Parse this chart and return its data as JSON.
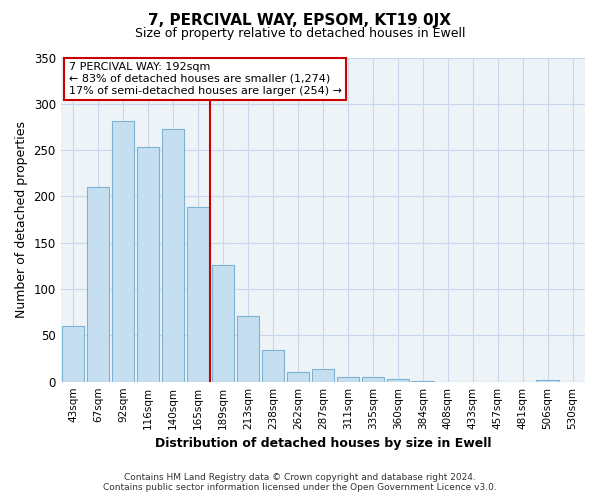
{
  "title": "7, PERCIVAL WAY, EPSOM, KT19 0JX",
  "subtitle": "Size of property relative to detached houses in Ewell",
  "xlabel": "Distribution of detached houses by size in Ewell",
  "ylabel": "Number of detached properties",
  "bar_labels": [
    "43sqm",
    "67sqm",
    "92sqm",
    "116sqm",
    "140sqm",
    "165sqm",
    "189sqm",
    "213sqm",
    "238sqm",
    "262sqm",
    "287sqm",
    "311sqm",
    "335sqm",
    "360sqm",
    "384sqm",
    "408sqm",
    "433sqm",
    "457sqm",
    "481sqm",
    "506sqm",
    "530sqm"
  ],
  "bar_values": [
    60,
    210,
    281,
    253,
    273,
    189,
    126,
    71,
    34,
    10,
    14,
    5,
    5,
    3,
    1,
    0,
    0,
    0,
    0,
    2,
    0
  ],
  "bar_color": "#c6dff0",
  "bar_edge_color": "#7ab3d3",
  "vline_index": 6,
  "vline_color": "#cc0000",
  "ylim": [
    0,
    350
  ],
  "yticks": [
    0,
    50,
    100,
    150,
    200,
    250,
    300,
    350
  ],
  "annotation_title": "7 PERCIVAL WAY: 192sqm",
  "annotation_line1": "← 83% of detached houses are smaller (1,274)",
  "annotation_line2": "17% of semi-detached houses are larger (254) →",
  "annotation_box_color": "#ffffff",
  "annotation_box_edge": "#cc0000",
  "footer1": "Contains HM Land Registry data © Crown copyright and database right 2024.",
  "footer2": "Contains public sector information licensed under the Open Government Licence v3.0.",
  "grid_color": "#c8d8ea",
  "bg_color": "#eef3f8"
}
